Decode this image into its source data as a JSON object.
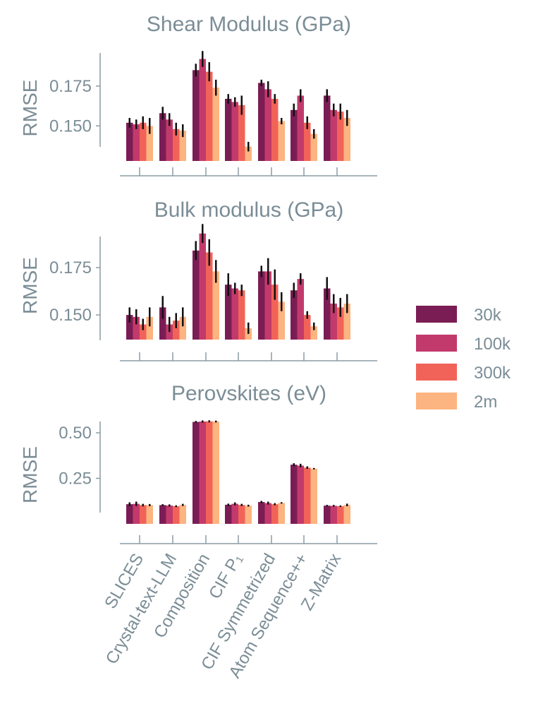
{
  "chart_data": [
    {
      "type": "bar",
      "title": "Shear Modulus (GPa)",
      "ylabel": "RMSE",
      "ylim": [
        0.128,
        0.198
      ],
      "yticks": [
        0.15,
        0.175
      ],
      "yticklabels": [
        "0.150",
        "0.175"
      ],
      "categories": [
        "SLICES",
        "Crystal-text-LLM",
        "Composition",
        "CIF P₁",
        "CIF Symmetrized",
        "Atom Sequence++",
        "Z-Matrix"
      ],
      "series": [
        {
          "name": "30k",
          "values": [
            0.152,
            0.158,
            0.185,
            0.167,
            0.177,
            0.16,
            0.169
          ],
          "errors": [
            0.003,
            0.004,
            0.004,
            0.003,
            0.002,
            0.004,
            0.004
          ]
        },
        {
          "name": "100k",
          "values": [
            0.151,
            0.154,
            0.192,
            0.165,
            0.173,
            0.169,
            0.16
          ],
          "errors": [
            0.003,
            0.004,
            0.005,
            0.003,
            0.005,
            0.004,
            0.004
          ]
        },
        {
          "name": "300k",
          "values": [
            0.152,
            0.148,
            0.184,
            0.163,
            0.167,
            0.152,
            0.159
          ],
          "errors": [
            0.004,
            0.004,
            0.006,
            0.006,
            0.003,
            0.004,
            0.005
          ]
        },
        {
          "name": "2m",
          "values": [
            0.15,
            0.147,
            0.174,
            0.137,
            0.153,
            0.145,
            0.155
          ],
          "errors": [
            0.005,
            0.004,
            0.005,
            0.003,
            0.002,
            0.003,
            0.005
          ]
        }
      ]
    },
    {
      "type": "bar",
      "title": "Bulk modulus (GPa)",
      "ylabel": "RMSE",
      "ylim": [
        0.137,
        0.197
      ],
      "yticks": [
        0.15,
        0.175
      ],
      "yticklabels": [
        "0.150",
        "0.175"
      ],
      "categories": [
        "SLICES",
        "Crystal-text-LLM",
        "Composition",
        "CIF P₁",
        "CIF Symmetrized",
        "Atom Sequence++",
        "Z-Matrix"
      ],
      "series": [
        {
          "name": "30k",
          "values": [
            0.15,
            0.154,
            0.184,
            0.166,
            0.173,
            0.163,
            0.164
          ],
          "errors": [
            0.004,
            0.006,
            0.005,
            0.006,
            0.003,
            0.004,
            0.006
          ]
        },
        {
          "name": "100k",
          "values": [
            0.149,
            0.145,
            0.193,
            0.164,
            0.173,
            0.169,
            0.156
          ],
          "errors": [
            0.004,
            0.004,
            0.005,
            0.003,
            0.007,
            0.003,
            0.005
          ]
        },
        {
          "name": "300k",
          "values": [
            0.145,
            0.147,
            0.183,
            0.163,
            0.166,
            0.15,
            0.154
          ],
          "errors": [
            0.003,
            0.004,
            0.007,
            0.003,
            0.008,
            0.002,
            0.005
          ]
        },
        {
          "name": "2m",
          "values": [
            0.149,
            0.149,
            0.173,
            0.143,
            0.157,
            0.144,
            0.156
          ],
          "errors": [
            0.005,
            0.005,
            0.006,
            0.003,
            0.005,
            0.002,
            0.005
          ]
        }
      ]
    },
    {
      "type": "bar",
      "title": "Perovskites (eV)",
      "ylabel": "RMSE",
      "ylim": [
        0.0,
        0.57
      ],
      "yticks": [
        0.25,
        0.5
      ],
      "yticklabels": [
        "0.25",
        "0.50"
      ],
      "categories": [
        "SLICES",
        "Crystal-text-LLM",
        "Composition",
        "CIF P₁",
        "CIF Symmetrized",
        "Atom Sequence++",
        "Z-Matrix"
      ],
      "series": [
        {
          "name": "30k",
          "values": [
            0.108,
            0.103,
            0.56,
            0.105,
            0.12,
            0.325,
            0.1
          ],
          "errors": [
            0.01,
            0.005,
            0.005,
            0.006,
            0.006,
            0.008,
            0.004
          ]
        },
        {
          "name": "100k",
          "values": [
            0.11,
            0.101,
            0.562,
            0.11,
            0.114,
            0.32,
            0.099
          ],
          "errors": [
            0.012,
            0.006,
            0.006,
            0.008,
            0.008,
            0.01,
            0.005
          ]
        },
        {
          "name": "300k",
          "values": [
            0.103,
            0.097,
            0.563,
            0.104,
            0.108,
            0.309,
            0.097
          ],
          "errors": [
            0.007,
            0.005,
            0.006,
            0.006,
            0.006,
            0.007,
            0.004
          ]
        },
        {
          "name": "2m",
          "values": [
            0.103,
            0.104,
            0.562,
            0.1,
            0.115,
            0.303,
            0.104
          ],
          "errors": [
            0.006,
            0.006,
            0.005,
            0.005,
            0.004,
            0.004,
            0.007
          ]
        }
      ]
    }
  ],
  "legend": {
    "placement": "right",
    "entries": [
      {
        "label": "30k",
        "color": "#7b1d55"
      },
      {
        "label": "100k",
        "color": "#c23a6b"
      },
      {
        "label": "300k",
        "color": "#f16359"
      },
      {
        "label": "2m",
        "color": "#fcb480"
      }
    ]
  }
}
